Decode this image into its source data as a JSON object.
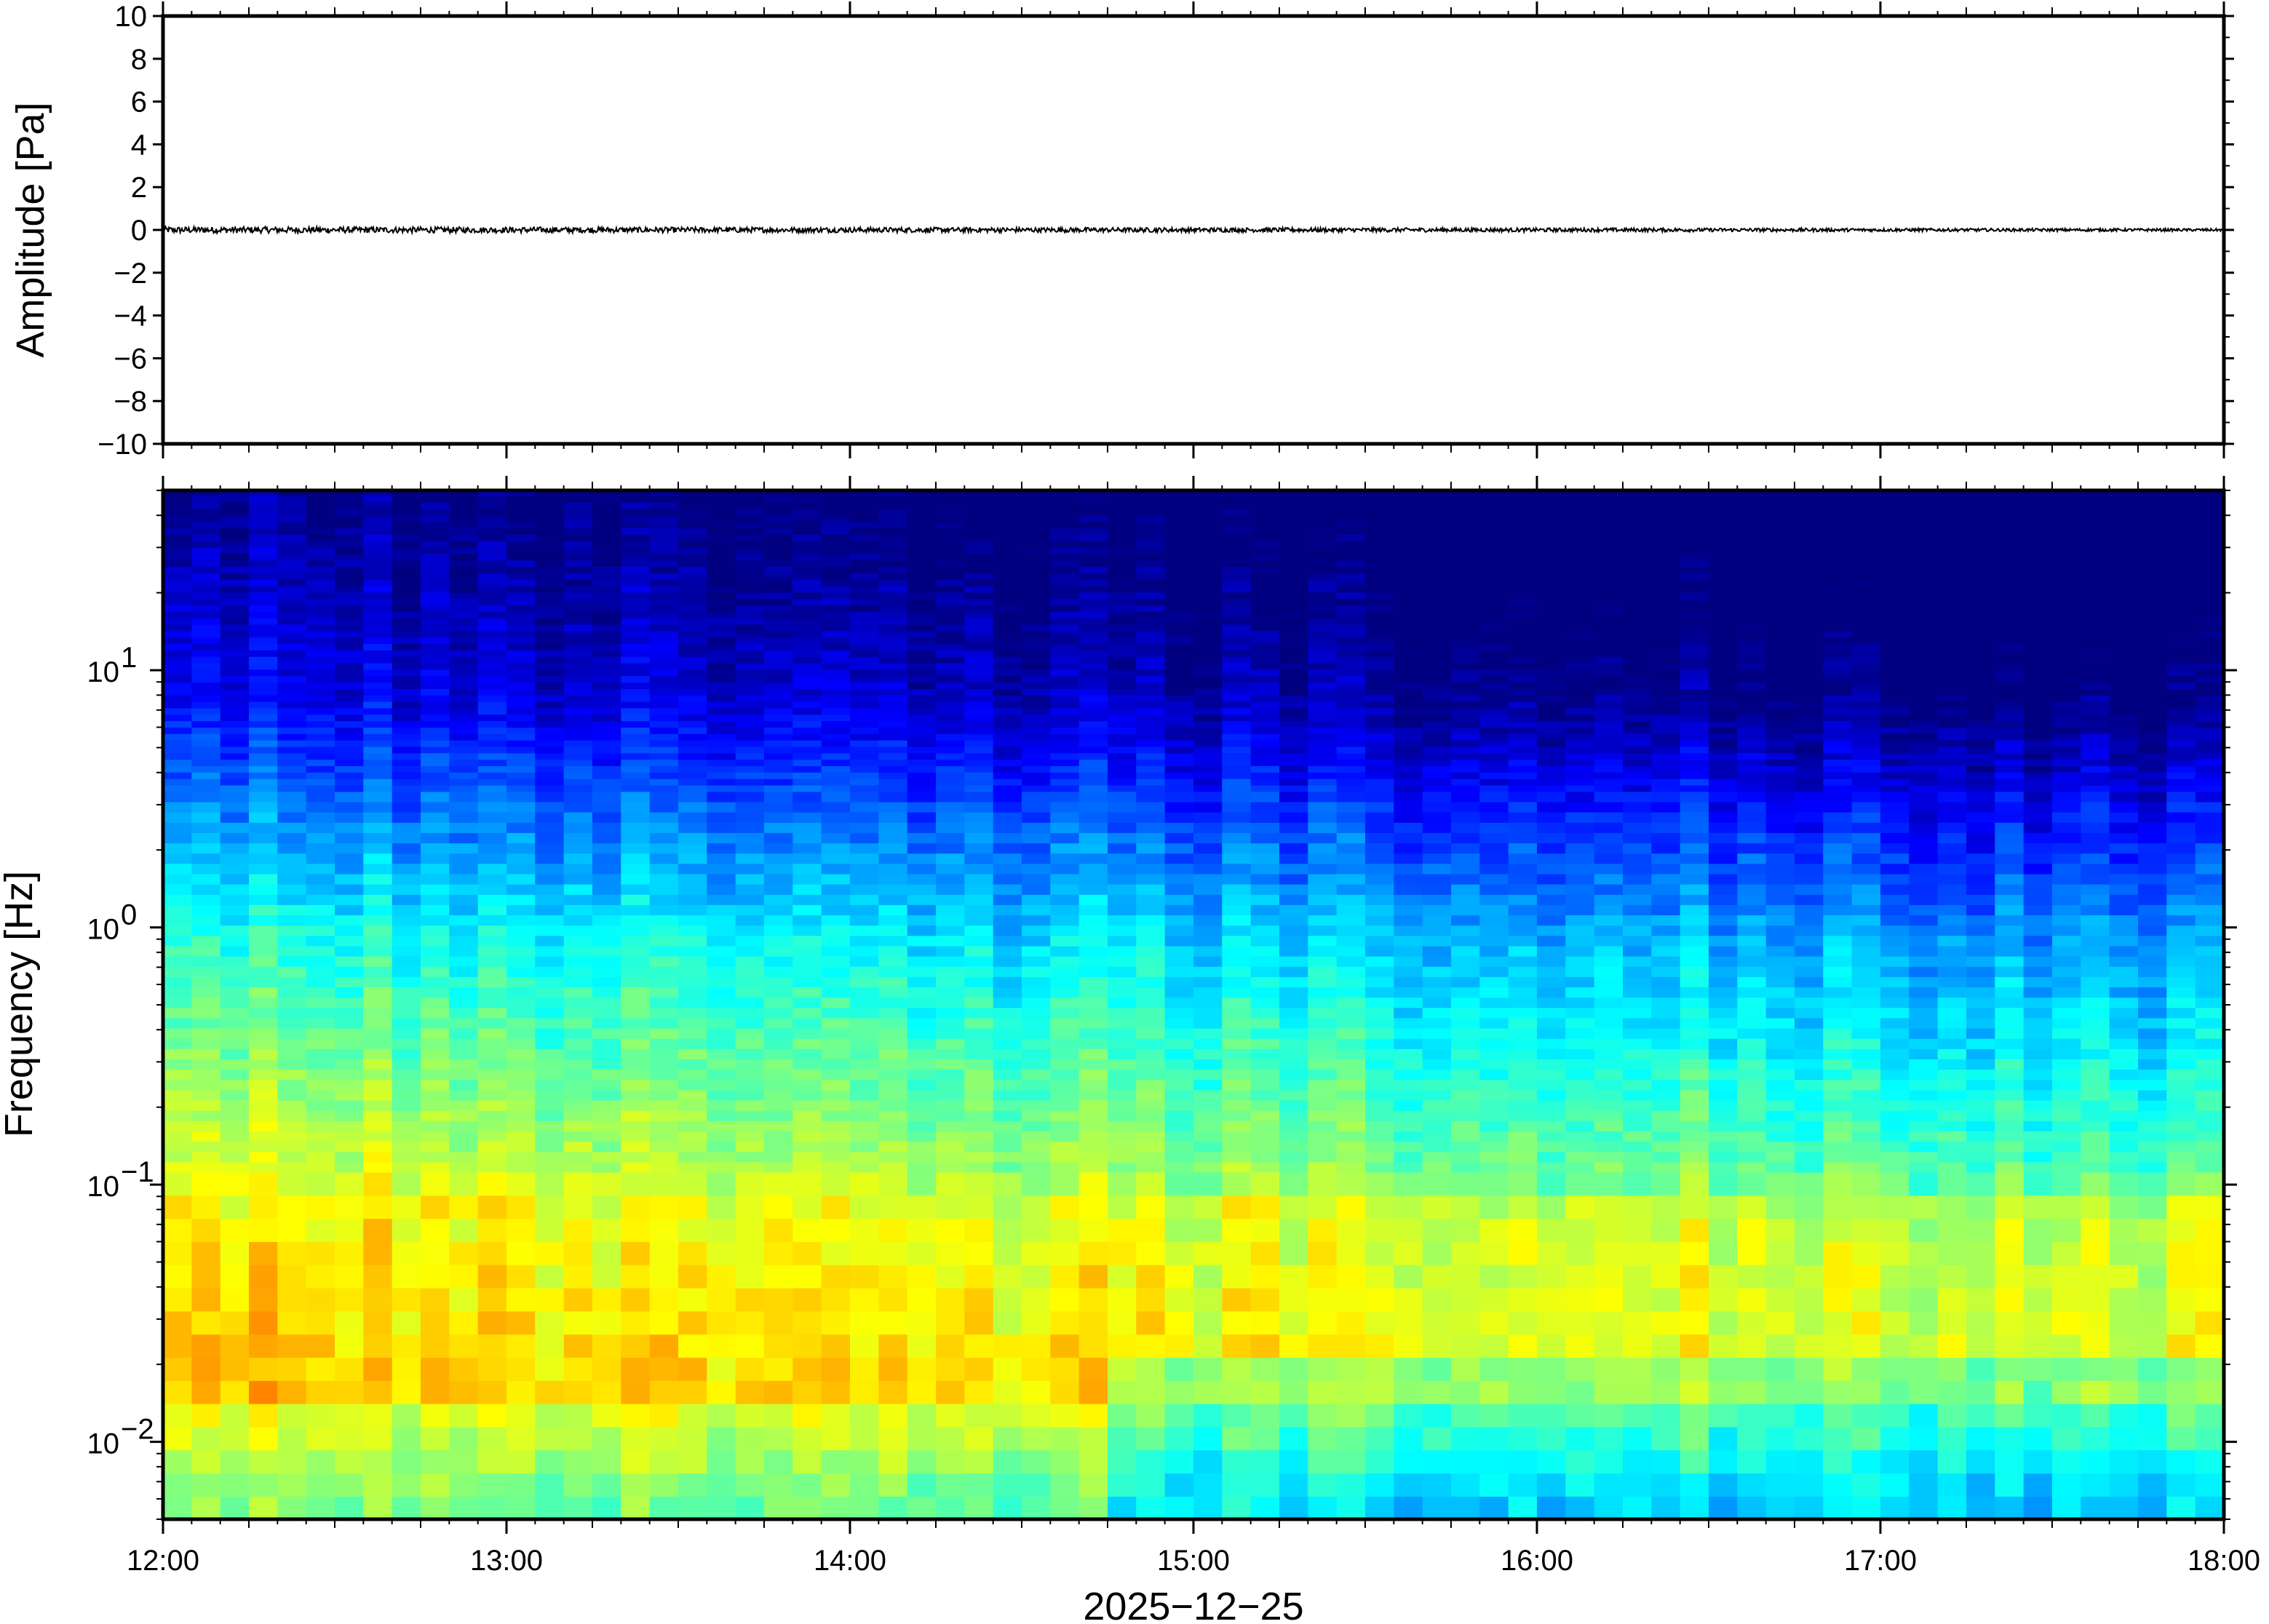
{
  "chart_data": [
    {
      "type": "line",
      "panel": "waveform",
      "ylabel": "Amplitude [Pa]",
      "ylim": [
        -10,
        10
      ],
      "yticks": [
        10,
        8,
        6,
        4,
        2,
        0,
        -2,
        -4,
        -6,
        -8,
        -10
      ],
      "ytick_labels": [
        "10",
        "8",
        "6",
        "4",
        "2",
        "0",
        "−2",
        "−4",
        "−6",
        "−8",
        "−10"
      ],
      "xlim": [
        "12:00",
        "18:00"
      ],
      "series": [
        {
          "description_values": "near-zero noise trace",
          "values_range": [
            -0.15,
            0.15
          ],
          "color": "#000000"
        }
      ]
    },
    {
      "type": "heatmap",
      "panel": "spectrogram",
      "ylabel": "Frequency [Hz]",
      "yscale": "log",
      "ylim": [
        0.005,
        50
      ],
      "yticks": [
        0.01,
        0.1,
        1,
        10
      ],
      "ytick_labels": [
        {
          "base": "10",
          "exp": "−2"
        },
        {
          "base": "10",
          "exp": "−1"
        },
        {
          "base": "10",
          "exp": "0"
        },
        {
          "base": "10",
          "exp": "1"
        }
      ],
      "xlabel": "2025−12−25",
      "xticks": [
        "12:00",
        "13:00",
        "14:00",
        "15:00",
        "16:00",
        "17:00",
        "18:00"
      ],
      "colormap": "jet",
      "colors": {
        "low": "#00007f",
        "mid_low": "#1e90ff",
        "mid": "#7fffa0",
        "mid_high": "#ffd060",
        "high": "#ff8030"
      }
    }
  ]
}
